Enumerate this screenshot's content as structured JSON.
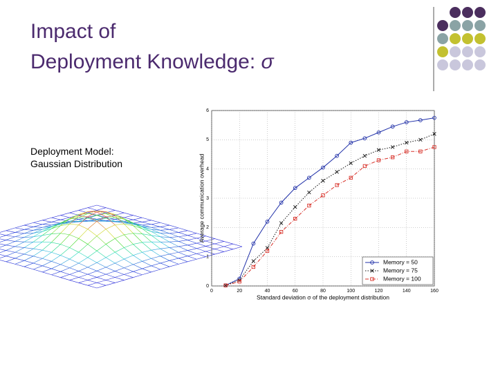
{
  "slide": {
    "title_lines": [
      "Impact of",
      "Deployment Knowledge:"
    ],
    "title_symbol": "σ",
    "body_lines": [
      "Deployment Model:",
      "Gaussian Distribution"
    ]
  },
  "chart_data": {
    "type": "line",
    "x_label": "Standard deviation σ of the deployment distribution",
    "y_label": "Average communication overhead",
    "x": [
      10,
      20,
      30,
      40,
      50,
      60,
      70,
      80,
      90,
      100,
      110,
      120,
      130,
      140,
      150,
      160
    ],
    "series": [
      {
        "name": "Memory = 50",
        "color": "#1f2fa8",
        "marker": "circle",
        "dash": "solid",
        "values": [
          0.02,
          0.25,
          1.45,
          2.2,
          2.85,
          3.35,
          3.7,
          4.05,
          4.45,
          4.9,
          5.05,
          5.25,
          5.45,
          5.6,
          5.67,
          5.75
        ]
      },
      {
        "name": "Memory = 75",
        "color": "#111111",
        "marker": "x",
        "dash": "dotted",
        "values": [
          0.02,
          0.2,
          0.85,
          1.3,
          2.15,
          2.7,
          3.2,
          3.6,
          3.9,
          4.2,
          4.45,
          4.65,
          4.75,
          4.9,
          5.0,
          5.2
        ]
      },
      {
        "name": "Memory = 100",
        "color": "#d8322a",
        "marker": "square",
        "dash": "dashdot",
        "values": [
          0.02,
          0.15,
          0.65,
          1.2,
          1.85,
          2.3,
          2.75,
          3.1,
          3.45,
          3.7,
          4.1,
          4.3,
          4.4,
          4.6,
          4.6,
          4.75
        ]
      }
    ],
    "xlim": [
      0,
      160
    ],
    "xticks": [
      0,
      20,
      40,
      60,
      80,
      100,
      120,
      140,
      160
    ],
    "ylim": [
      0,
      6
    ],
    "yticks": [
      0,
      1,
      2,
      3,
      4,
      5,
      6
    ],
    "grid": true,
    "legend_position": "lower-right"
  }
}
